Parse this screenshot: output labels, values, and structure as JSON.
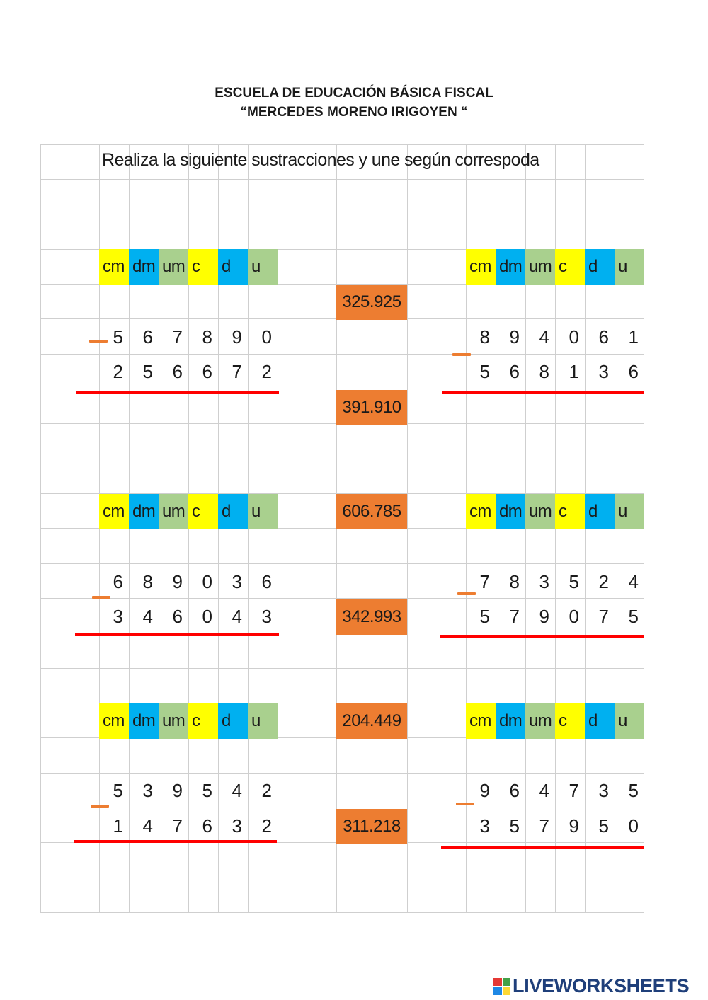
{
  "header": {
    "line1": "ESCUELA DE EDUCACIÓN BÁSICA FISCAL",
    "line2": "“MERCEDES MORENO IRIGOYEN “"
  },
  "instruction": "Realiza la siguiente sustracciones y une según correspoda",
  "place_headers": [
    "cm",
    "dm",
    "um",
    "c",
    "d",
    "u"
  ],
  "header_colors": [
    "#ffff00",
    "#00b0f0",
    "#a9d08e",
    "#ffff00",
    "#00b0f0",
    "#a9d08e"
  ],
  "problems": [
    {
      "minuend": [
        "5",
        "6",
        "7",
        "8",
        "9",
        "0"
      ],
      "subtrahend": [
        "2",
        "5",
        "6",
        "6",
        "7",
        "2"
      ]
    },
    {
      "minuend": [
        "8",
        "9",
        "4",
        "0",
        "6",
        "1"
      ],
      "subtrahend": [
        "5",
        "6",
        "8",
        "1",
        "3",
        "6"
      ]
    },
    {
      "minuend": [
        "6",
        "8",
        "9",
        "0",
        "3",
        "6"
      ],
      "subtrahend": [
        "3",
        "4",
        "6",
        "0",
        "4",
        "3"
      ]
    },
    {
      "minuend": [
        "7",
        "8",
        "3",
        "5",
        "2",
        "4"
      ],
      "subtrahend": [
        "5",
        "7",
        "9",
        "0",
        "7",
        "5"
      ]
    },
    {
      "minuend": [
        "5",
        "3",
        "9",
        "5",
        "4",
        "2"
      ],
      "subtrahend": [
        "1",
        "4",
        "7",
        "6",
        "3",
        "2"
      ]
    },
    {
      "minuend": [
        "9",
        "6",
        "4",
        "7",
        "3",
        "5"
      ],
      "subtrahend": [
        "3",
        "5",
        "7",
        "9",
        "5",
        "0"
      ]
    }
  ],
  "answers": [
    "325.925",
    "391.910",
    "606.785",
    "342.993",
    "204.449",
    "311.218"
  ],
  "footer": {
    "brand": "LIVEWORKSHEETS"
  }
}
